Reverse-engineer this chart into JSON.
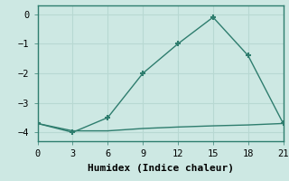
{
  "x": [
    0,
    3,
    6,
    9,
    12,
    15,
    18,
    21
  ],
  "y_upper": [
    -3.7,
    -4.0,
    -3.5,
    -2.0,
    -1.0,
    -0.1,
    -1.4,
    -3.7
  ],
  "y_lower": [
    -3.7,
    -3.95,
    -3.95,
    -3.87,
    -3.82,
    -3.78,
    -3.75,
    -3.7
  ],
  "line_color": "#2e7d6e",
  "bg_color": "#cde8e3",
  "grid_color": "#b8d8d2",
  "xlabel": "Humidex (Indice chaleur)",
  "xlim": [
    0,
    21
  ],
  "ylim": [
    -4.3,
    0.3
  ],
  "xticks": [
    0,
    3,
    6,
    9,
    12,
    15,
    18,
    21
  ],
  "yticks": [
    0,
    -1,
    -2,
    -3,
    -4
  ],
  "marker": "+",
  "markersize": 5,
  "markeredgewidth": 1.5,
  "linewidth": 1.0,
  "xlabel_fontsize": 8,
  "tick_fontsize": 7.5
}
